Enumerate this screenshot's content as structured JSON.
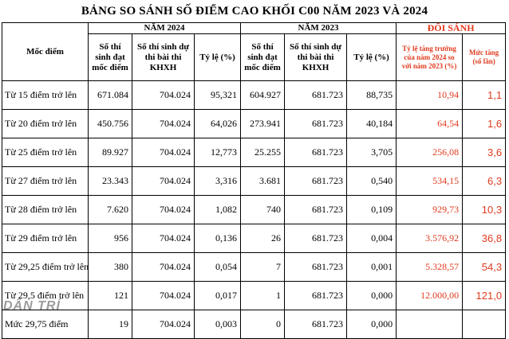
{
  "title": "BẢNG SO SÁNH SỐ ĐIỂM CAO KHỐI C00 NĂM 2023 VÀ 2024",
  "headers": {
    "moc_diem": "Mốc điểm",
    "group_2024": "NĂM 2024",
    "group_2023": "NĂM 2023",
    "group_doi_sanh": "ĐỐI SÁNH",
    "col_dat": "Số thí sinh đạt mốc điểm",
    "col_du_thi": "Số thí sinh dự thi bài thi KHXH",
    "col_ty_le": "Tỷ lệ (%)",
    "col_tang_truong": "Tỷ lệ tăng trưởng của năm 2024 so với năm 2023 (%)",
    "col_muc_tang": "Mức tăng (số lần)"
  },
  "rows": [
    {
      "label": "Từ 15 điểm trở lên",
      "a24": "671.084",
      "t24": "704.024",
      "r24": "95,321",
      "a23": "604.927",
      "t23": "681.723",
      "r23": "88,735",
      "growth": "10,94",
      "times": "1,1"
    },
    {
      "label": "Từ 20 điểm trở lên",
      "a24": "450.756",
      "t24": "704.024",
      "r24": "64,026",
      "a23": "273.941",
      "t23": "681.723",
      "r23": "40,184",
      "growth": "64,54",
      "times": "1,6"
    },
    {
      "label": "Từ 25 điểm trở lên",
      "a24": "89.927",
      "t24": "704.024",
      "r24": "12,773",
      "a23": "25.255",
      "t23": "681.723",
      "r23": "3,705",
      "growth": "256,08",
      "times": "3,6"
    },
    {
      "label": "Từ 27 điểm trở lên",
      "a24": "23.343",
      "t24": "704.024",
      "r24": "3,316",
      "a23": "3.681",
      "t23": "681.723",
      "r23": "0,540",
      "growth": "534,15",
      "times": "6,3"
    },
    {
      "label": "Từ 28 điểm trở lên",
      "a24": "7.620",
      "t24": "704.024",
      "r24": "1,082",
      "a23": "740",
      "t23": "681.723",
      "r23": "0,109",
      "growth": "929,73",
      "times": "10,3"
    },
    {
      "label": "Từ 29 điểm trở lên",
      "a24": "956",
      "t24": "704.024",
      "r24": "0,136",
      "a23": "26",
      "t23": "681.723",
      "r23": "0,004",
      "growth": "3.576,92",
      "times": "36,8"
    },
    {
      "label": "Từ 29,25 điểm trở lên",
      "a24": "380",
      "t24": "704.024",
      "r24": "0,054",
      "a23": "7",
      "t23": "681.723",
      "r23": "0,001",
      "growth": "5.328,57",
      "times": "54,3"
    },
    {
      "label": "Từ 29,5 điểm trở lên",
      "a24": "121",
      "t24": "704.024",
      "r24": "0,017",
      "a23": "1",
      "t23": "681.723",
      "r23": "0,000",
      "growth": "12.000,00",
      "times": "121,0"
    },
    {
      "label": "Mức 29,75 điểm",
      "a24": "19",
      "t24": "704.024",
      "r24": "0,003",
      "a23": "0",
      "t23": "681.723",
      "r23": "0,000",
      "growth": "",
      "times": ""
    }
  ],
  "watermark": "DÂN TRÍ",
  "colors": {
    "accent_red": "#e03a1e"
  }
}
